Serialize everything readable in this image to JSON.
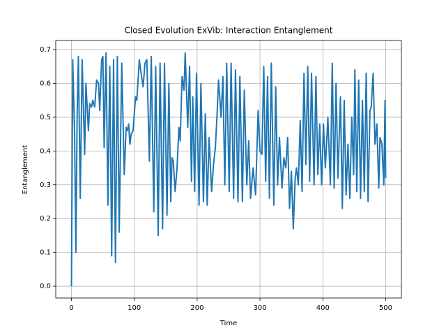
{
  "chart_data": {
    "type": "line",
    "title": "Closed Evolution ExVib: Interaction Entanglement",
    "x_label": "Time",
    "y_label": "Entanglement",
    "grid": true,
    "xlim": [
      -25,
      525
    ],
    "ylim": [
      -0.035,
      0.727
    ],
    "xticks": [
      0,
      100,
      200,
      300,
      400,
      500
    ],
    "yticks": [
      {
        "value": 0,
        "label": "0.0"
      },
      0.1,
      0.2,
      0.3,
      0.4,
      0.5,
      0.6,
      0.7
    ],
    "series": [
      {
        "name": "Entanglement",
        "color": "#1f77b4",
        "x": [
          0,
          2,
          5,
          7,
          9,
          11,
          14,
          17,
          21,
          23,
          27,
          29,
          32,
          34,
          37,
          40,
          43,
          45,
          48,
          50,
          52,
          55,
          58,
          61,
          64,
          67,
          70,
          73,
          76,
          80,
          84,
          87,
          89,
          91,
          93,
          95,
          98,
          102,
          104,
          108,
          110,
          114,
          117,
          120,
          124,
          127,
          131,
          134,
          138,
          141,
          145,
          148,
          152,
          155,
          158,
          160,
          162,
          165,
          168,
          171,
          173,
          176,
          179,
          181,
          185,
          188,
          191,
          193,
          196,
          199,
          203,
          206,
          210,
          213,
          216,
          219,
          223,
          226,
          229,
          232,
          234,
          236,
          238,
          241,
          244,
          247,
          251,
          254,
          258,
          261,
          265,
          268,
          272,
          275,
          279,
          282,
          285,
          289,
          293,
          297,
          300,
          303,
          306,
          309,
          312,
          315,
          318,
          322,
          325,
          328,
          331,
          335,
          338,
          341,
          344,
          347,
          350,
          353,
          356,
          358,
          361,
          364,
          367,
          370,
          373,
          376,
          379,
          382,
          386,
          389,
          392,
          395,
          398,
          401,
          404,
          408,
          412,
          415,
          418,
          421,
          424,
          428,
          431,
          434,
          437,
          440,
          443,
          446,
          449,
          451,
          454,
          457,
          460,
          463,
          466,
          469,
          472,
          475,
          477,
          480,
          483,
          486,
          489,
          491,
          494,
          497,
          499,
          500
        ],
        "values": [
          0,
          0.67,
          0.45,
          0.1,
          0.5,
          0.68,
          0.26,
          0.67,
          0.39,
          0.6,
          0.46,
          0.54,
          0.53,
          0.55,
          0.53,
          0.61,
          0.6,
          0.52,
          0.67,
          0.68,
          0.41,
          0.69,
          0.24,
          0.65,
          0.09,
          0.67,
          0.07,
          0.68,
          0.16,
          0.66,
          0.33,
          0.47,
          0.46,
          0.48,
          0.42,
          0.45,
          0.46,
          0.56,
          0.55,
          0.67,
          0.64,
          0.59,
          0.66,
          0.67,
          0.37,
          0.68,
          0.22,
          0.65,
          0.15,
          0.66,
          0.17,
          0.66,
          0.21,
          0.6,
          0.25,
          0.38,
          0.37,
          0.28,
          0.35,
          0.47,
          0.43,
          0.62,
          0.58,
          0.69,
          0.47,
          0.65,
          0.31,
          0.56,
          0.28,
          0.63,
          0.24,
          0.6,
          0.25,
          0.51,
          0.24,
          0.44,
          0.28,
          0.36,
          0.41,
          0.52,
          0.61,
          0.56,
          0.5,
          0.62,
          0.3,
          0.66,
          0.28,
          0.66,
          0.26,
          0.64,
          0.25,
          0.62,
          0.25,
          0.58,
          0.3,
          0.43,
          0.26,
          0.35,
          0.27,
          0.52,
          0.4,
          0.39,
          0.65,
          0.31,
          0.62,
          0.26,
          0.66,
          0.24,
          0.59,
          0.3,
          0.44,
          0.29,
          0.38,
          0.35,
          0.44,
          0.23,
          0.34,
          0.17,
          0.32,
          0.35,
          0.3,
          0.49,
          0.28,
          0.63,
          0.36,
          0.65,
          0.31,
          0.63,
          0.3,
          0.62,
          0.33,
          0.48,
          0.3,
          0.48,
          0.35,
          0.5,
          0.3,
          0.66,
          0.29,
          0.6,
          0.32,
          0.56,
          0.23,
          0.55,
          0.27,
          0.42,
          0.26,
          0.5,
          0.33,
          0.64,
          0.28,
          0.61,
          0.26,
          0.55,
          0.28,
          0.63,
          0.25,
          0.52,
          0.53,
          0.63,
          0.42,
          0.48,
          0.29,
          0.44,
          0.42,
          0.3,
          0.55,
          0.32
        ]
      }
    ]
  }
}
